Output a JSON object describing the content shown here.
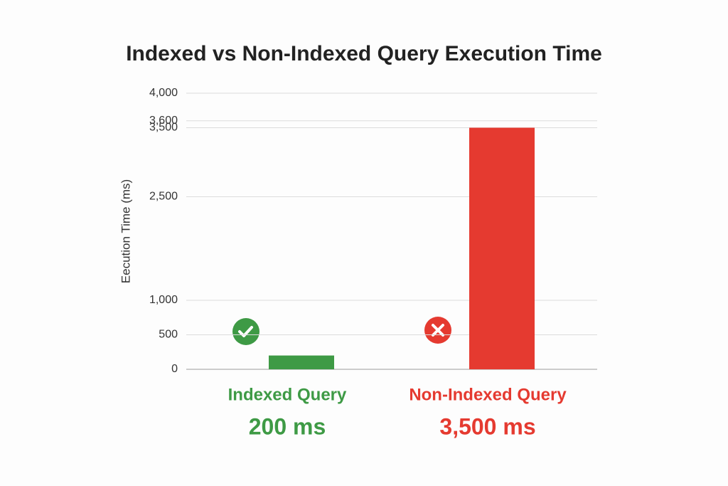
{
  "chart_data": {
    "type": "bar",
    "title": "Indexed vs Non-Indexed Query Execution Time",
    "y_label": "Eecution Time (ms)",
    "categories": [
      "Indexed Query",
      "Non-Indexed Query"
    ],
    "values": [
      200,
      3500
    ],
    "value_labels": [
      "200 ms",
      "3,500 ms"
    ],
    "colors": [
      "#3e9a45",
      "#e53a30"
    ],
    "ylim": [
      0,
      4000
    ],
    "yticks": [
      0,
      500,
      {
        "value": 1000,
        "label": "1,000"
      },
      {
        "value": 2500,
        "label": "2,500"
      },
      {
        "value": 3600,
        "label": "3,600"
      },
      {
        "value": 3500,
        "label": "3,500"
      },
      {
        "value": 4000,
        "label": "4,000"
      }
    ],
    "grid": true
  }
}
